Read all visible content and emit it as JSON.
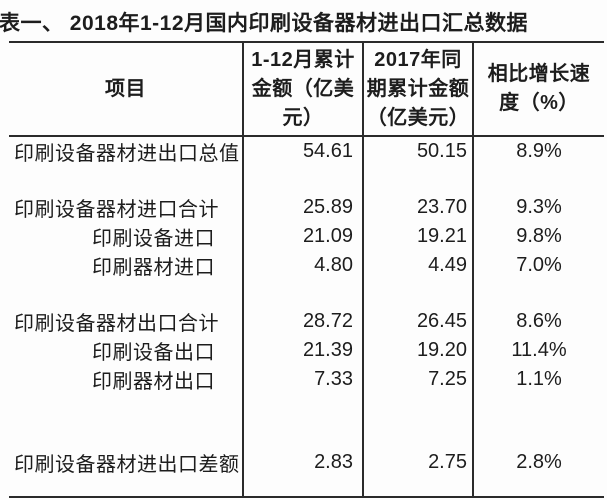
{
  "colors": {
    "background": "#fdfdfd",
    "line": "#2b2b2b",
    "text": "#1d1d1d"
  },
  "chart_data": {
    "type": "table",
    "title": "表一、 2018年1-12月国内印刷设备器材进出口汇总数据",
    "columns": [
      "项目",
      "1-12月累计金额（亿美元）",
      "2017年同期累计金额（亿美元）",
      "相比增长速度（%）"
    ],
    "header_lines": {
      "col1": [
        "项目"
      ],
      "col2": [
        "1-12月累计",
        "金额（亿美",
        "元）"
      ],
      "col3": [
        "2017年同",
        "期累计金额",
        "（亿美元）"
      ],
      "col4": [
        "相比增长速",
        "度（%）"
      ]
    },
    "rows": [
      {
        "label": "印刷设备器材进出口总值",
        "level": "main",
        "amount_2018": "54.61",
        "amount_2017": "50.15",
        "growth": "8.9%"
      },
      {
        "label": "印刷设备器材进口合计",
        "level": "main",
        "amount_2018": "25.89",
        "amount_2017": "23.70",
        "growth": "9.3%"
      },
      {
        "label": "印刷设备进口",
        "level": "sub",
        "amount_2018": "21.09",
        "amount_2017": "19.21",
        "growth": "9.8%"
      },
      {
        "label": "印刷器材进口",
        "level": "sub",
        "amount_2018": "4.80",
        "amount_2017": "4.49",
        "growth": "7.0%"
      },
      {
        "label": "印刷设备器材出口合计",
        "level": "main",
        "amount_2018": "28.72",
        "amount_2017": "26.45",
        "growth": "8.6%"
      },
      {
        "label": "印刷设备出口",
        "level": "sub",
        "amount_2018": "21.39",
        "amount_2017": "19.20",
        "growth": "11.4%"
      },
      {
        "label": "印刷器材出口",
        "level": "sub",
        "amount_2018": "7.33",
        "amount_2017": "7.25",
        "growth": "1.1%"
      },
      {
        "label": "印刷设备器材进出口差额",
        "level": "main",
        "amount_2018": "2.83",
        "amount_2017": "2.75",
        "growth": "2.8%"
      }
    ]
  }
}
